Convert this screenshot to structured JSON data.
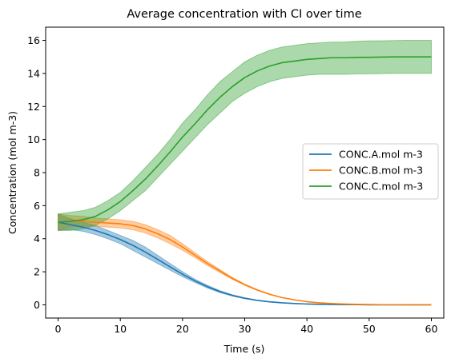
{
  "chart_data": {
    "type": "line",
    "title": "Average concentration with CI over time",
    "xlabel": "Time (s)",
    "ylabel": "Concentration (mol m-3)",
    "xlim": [
      -2,
      62
    ],
    "ylim": [
      -0.8,
      16.8
    ],
    "xticks": [
      0,
      10,
      20,
      30,
      40,
      50,
      60
    ],
    "yticks": [
      0,
      2,
      4,
      6,
      8,
      10,
      12,
      14,
      16
    ],
    "grid": false,
    "legend": "center-right",
    "x": [
      0,
      2,
      4,
      6,
      8,
      10,
      12,
      14,
      16,
      18,
      20,
      22,
      24,
      26,
      28,
      30,
      32,
      34,
      36,
      38,
      40,
      42,
      44,
      46,
      48,
      50,
      52,
      54,
      56,
      58,
      60
    ],
    "series": [
      {
        "name": "CONC.A.mol m-3",
        "color": "#1f77b4",
        "values": [
          5.0,
          4.85,
          4.7,
          4.5,
          4.25,
          3.95,
          3.6,
          3.2,
          2.75,
          2.3,
          1.85,
          1.45,
          1.1,
          0.8,
          0.57,
          0.4,
          0.27,
          0.18,
          0.12,
          0.08,
          0.05,
          0.03,
          0.02,
          0.01,
          0.01,
          0.0,
          0.0,
          0.0,
          0.0,
          0.0,
          0.0
        ],
        "lower": [
          4.5,
          4.55,
          4.45,
          4.25,
          4.0,
          3.7,
          3.3,
          2.9,
          2.5,
          2.1,
          1.7,
          1.35,
          1.02,
          0.74,
          0.53,
          0.37,
          0.25,
          0.17,
          0.11,
          0.07,
          0.05,
          0.03,
          0.02,
          0.01,
          0.01,
          0.0,
          0.0,
          0.0,
          0.0,
          0.0,
          0.0
        ],
        "upper": [
          5.5,
          5.2,
          5.0,
          4.8,
          4.5,
          4.2,
          3.9,
          3.5,
          3.0,
          2.5,
          2.0,
          1.55,
          1.18,
          0.86,
          0.61,
          0.43,
          0.29,
          0.2,
          0.13,
          0.09,
          0.05,
          0.03,
          0.02,
          0.01,
          0.01,
          0.0,
          0.0,
          0.0,
          0.0,
          0.0,
          0.0
        ]
      },
      {
        "name": "CONC.B.mol m-3",
        "color": "#ff7f0e",
        "values": [
          5.0,
          5.05,
          5.05,
          5.0,
          4.95,
          4.9,
          4.8,
          4.6,
          4.3,
          3.95,
          3.5,
          3.0,
          2.5,
          2.05,
          1.6,
          1.22,
          0.9,
          0.64,
          0.44,
          0.3,
          0.19,
          0.12,
          0.08,
          0.05,
          0.03,
          0.02,
          0.01,
          0.01,
          0.0,
          0.0,
          0.0
        ],
        "lower": [
          4.5,
          4.7,
          4.75,
          4.75,
          4.7,
          4.65,
          4.55,
          4.35,
          4.05,
          3.7,
          3.3,
          2.85,
          2.38,
          1.96,
          1.54,
          1.18,
          0.87,
          0.62,
          0.43,
          0.29,
          0.19,
          0.12,
          0.08,
          0.05,
          0.03,
          0.02,
          0.01,
          0.01,
          0.0,
          0.0,
          0.0
        ],
        "upper": [
          5.5,
          5.4,
          5.35,
          5.25,
          5.2,
          5.15,
          5.05,
          4.85,
          4.55,
          4.2,
          3.7,
          3.15,
          2.62,
          2.14,
          1.66,
          1.26,
          0.93,
          0.66,
          0.45,
          0.31,
          0.19,
          0.12,
          0.08,
          0.05,
          0.03,
          0.02,
          0.01,
          0.01,
          0.0,
          0.0,
          0.0
        ]
      },
      {
        "name": "CONC.C.mol m-3",
        "color": "#2ca02c",
        "values": [
          5.0,
          5.05,
          5.15,
          5.35,
          5.75,
          6.25,
          6.9,
          7.6,
          8.4,
          9.25,
          10.15,
          10.95,
          11.8,
          12.55,
          13.2,
          13.75,
          14.15,
          14.45,
          14.65,
          14.75,
          14.85,
          14.9,
          14.95,
          14.95,
          14.97,
          14.98,
          14.99,
          15.0,
          15.0,
          15.0,
          15.0
        ],
        "lower": [
          4.5,
          4.5,
          4.6,
          4.8,
          5.2,
          5.7,
          6.3,
          6.9,
          7.7,
          8.5,
          9.3,
          10.1,
          10.9,
          11.6,
          12.3,
          12.8,
          13.2,
          13.5,
          13.7,
          13.8,
          13.9,
          13.95,
          13.95,
          13.95,
          13.97,
          13.98,
          13.99,
          14.0,
          14.0,
          14.0,
          14.0
        ],
        "upper": [
          5.5,
          5.6,
          5.7,
          5.9,
          6.3,
          6.8,
          7.5,
          8.3,
          9.1,
          10.0,
          11.0,
          11.8,
          12.7,
          13.5,
          14.1,
          14.7,
          15.1,
          15.4,
          15.6,
          15.7,
          15.8,
          15.85,
          15.9,
          15.9,
          15.95,
          15.97,
          15.98,
          15.99,
          16.0,
          16.0,
          16.0
        ]
      }
    ]
  }
}
